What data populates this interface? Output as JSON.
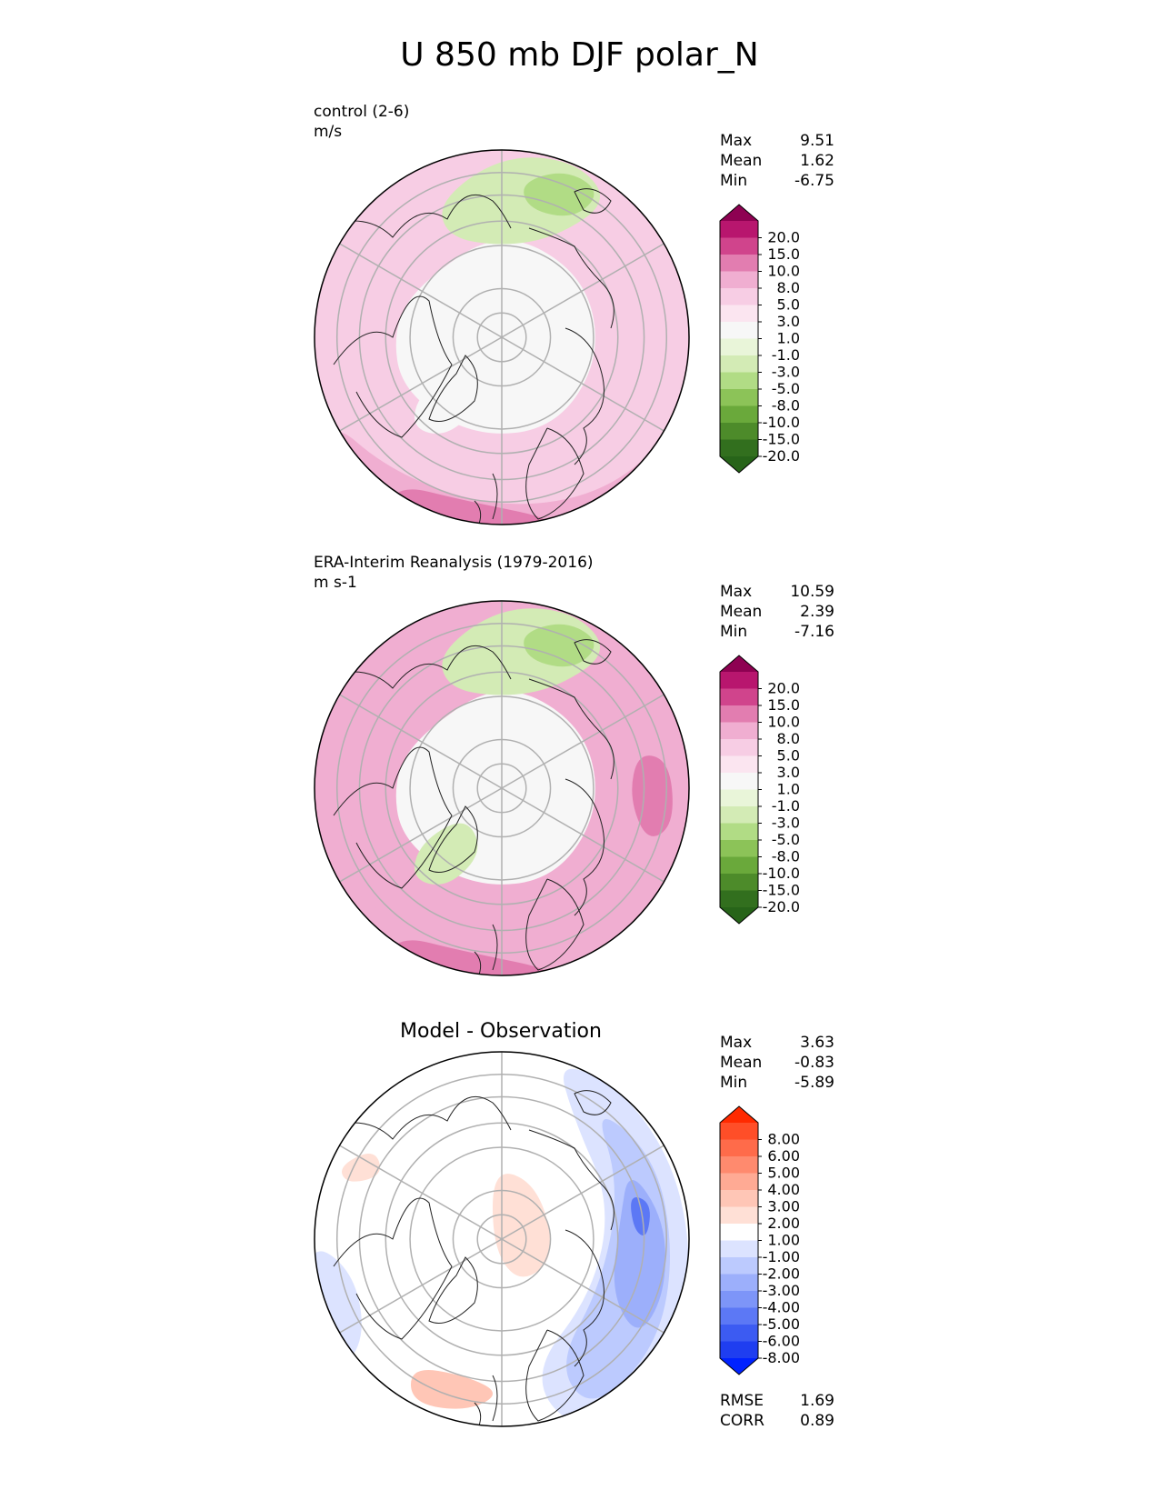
{
  "title": "U 850 mb DJF polar_N",
  "panels": [
    {
      "id": "test",
      "label_line1": "control (2-6)",
      "label_line2": "m/s",
      "stats": {
        "max_label": "Max",
        "max": "9.51",
        "mean_label": "Mean",
        "mean": "1.62",
        "min_label": "Min",
        "min": "-6.75"
      },
      "colorbar": {
        "ticks": [
          "20.0",
          "15.0",
          "10.0",
          "8.0",
          "5.0",
          "3.0",
          "1.0",
          "-1.0",
          "-3.0",
          "-5.0",
          "-8.0",
          "-10.0",
          "-15.0",
          "-20.0"
        ],
        "colors": [
          "#8e0152",
          "#b8166e",
          "#d0448c",
          "#e27db0",
          "#f0aed1",
          "#f7cde4",
          "#fbe5f0",
          "#f7f7f7",
          "#e9f5d9",
          "#d3ebb5",
          "#b1dc85",
          "#8cc358",
          "#6aa93b",
          "#4d8b2a",
          "#326f1e",
          "#276419"
        ]
      },
      "map_colors": {
        "base": "#f7cde4",
        "outer": "#f0aed1",
        "edge": "#e27db0",
        "center": "#f7f7f7",
        "green": "#d3ebb5",
        "green_dark": "#b1dc85"
      }
    },
    {
      "id": "ref",
      "label_line1": "ERA-Interim Reanalysis (1979-2016)",
      "label_line2": "m s-1",
      "stats": {
        "max_label": "Max",
        "max": "10.59",
        "mean_label": "Mean",
        "mean": "2.39",
        "min_label": "Min",
        "min": "-7.16"
      },
      "colorbar": {
        "ticks": [
          "20.0",
          "15.0",
          "10.0",
          "8.0",
          "5.0",
          "3.0",
          "1.0",
          "-1.0",
          "-3.0",
          "-5.0",
          "-8.0",
          "-10.0",
          "-15.0",
          "-20.0"
        ],
        "colors": [
          "#8e0152",
          "#b8166e",
          "#d0448c",
          "#e27db0",
          "#f0aed1",
          "#f7cde4",
          "#fbe5f0",
          "#f7f7f7",
          "#e9f5d9",
          "#d3ebb5",
          "#b1dc85",
          "#8cc358",
          "#6aa93b",
          "#4d8b2a",
          "#326f1e",
          "#276419"
        ]
      },
      "map_colors": {
        "base": "#f0aed1",
        "outer": "#f0aed1",
        "edge": "#e27db0",
        "center": "#f7f7f7",
        "green": "#d3ebb5",
        "green_dark": "#b1dc85"
      }
    },
    {
      "id": "diff",
      "title": "Model - Observation",
      "stats": {
        "max_label": "Max",
        "max": "3.63",
        "mean_label": "Mean",
        "mean": "-0.83",
        "min_label": "Min",
        "min": "-5.89"
      },
      "extra_stats": {
        "rmse_label": "RMSE",
        "rmse": "1.69",
        "corr_label": "CORR",
        "corr": "0.89"
      },
      "colorbar": {
        "ticks": [
          "8.00",
          "6.00",
          "5.00",
          "4.00",
          "3.00",
          "2.00",
          "1.00",
          "-1.00",
          "-2.00",
          "-3.00",
          "-4.00",
          "-5.00",
          "-6.00",
          "-8.00"
        ],
        "colors": [
          "#ff2a00",
          "#ff4e28",
          "#ff6b4a",
          "#ff8a6e",
          "#ffaa94",
          "#ffc6b6",
          "#ffe0d6",
          "#ffffff",
          "#dce3ff",
          "#bccafe",
          "#9caffb",
          "#7d95f8",
          "#5c78f5",
          "#3c5bf2",
          "#1f3ef0",
          "#0022ff"
        ]
      },
      "map_colors": {
        "base": "#ffffff",
        "blue_light": "#dce3ff",
        "blue": "#bccafe",
        "blue_mid": "#9caffb",
        "blue_dark": "#5c78f5",
        "red_light": "#ffe0d6",
        "red": "#ffc6b6"
      }
    }
  ]
}
